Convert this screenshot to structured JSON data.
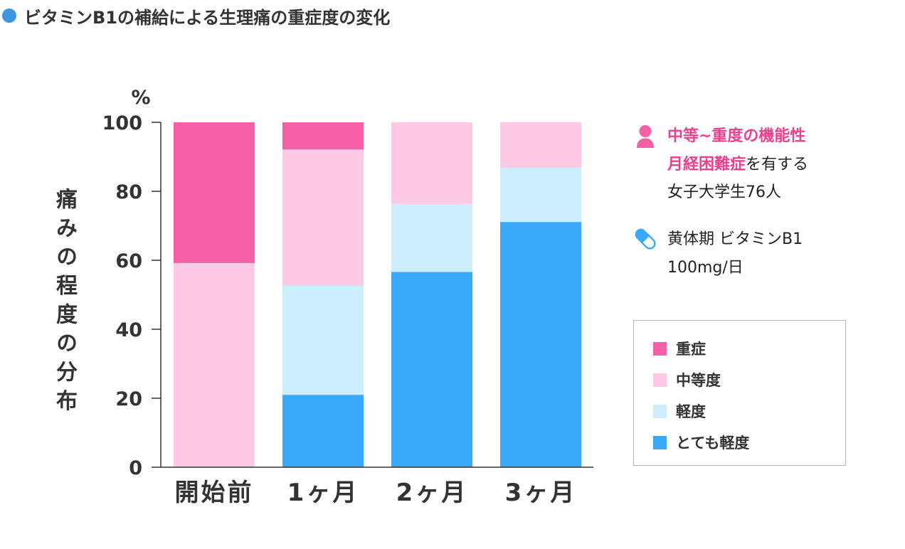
{
  "title": "ビタミンB1の補給による生理痛の重症度の変化",
  "colors": {
    "title_bullet": "#3a97e0",
    "highlight_text": "#e8418f",
    "person_icon": "#f561a5",
    "capsule_icon": "#3ba9f9",
    "axis": "#333333"
  },
  "icons": {
    "title_bullet": "circle-bullet-icon",
    "subjects": "person-icon",
    "supplement": "capsule-icon"
  },
  "chart_data": {
    "type": "bar",
    "stacked": true,
    "categories": [
      "開始前",
      "1ヶ月",
      "2ヶ月",
      "3ヶ月"
    ],
    "series": [
      {
        "name": "とても軽度",
        "values": [
          0,
          21.0,
          56.6,
          71.1
        ],
        "color": "#3ba9f9"
      },
      {
        "name": "軽度",
        "values": [
          0,
          31.6,
          19.7,
          15.8
        ],
        "color": "#cdeefc"
      },
      {
        "name": "中等度",
        "values": [
          59.2,
          39.5,
          23.7,
          13.1
        ],
        "color": "#fdc9e4"
      },
      {
        "name": "重症",
        "values": [
          40.8,
          7.9,
          0,
          0
        ],
        "color": "#f75fa8"
      }
    ],
    "ylabel": "痛みの程度の分布",
    "yunit": "%",
    "yticks": [
      0,
      20,
      40,
      60,
      80,
      100
    ],
    "ylim": [
      0,
      100
    ],
    "grid": false,
    "legend": "right"
  },
  "info": {
    "subjects_line1": "中等~重度の機能性",
    "subjects_line2_highlight": "月経困難症",
    "subjects_line2_rest": "を有する",
    "subjects_line3": "女子大学生76人",
    "dose_line1": "黄体期 ビタミンB1",
    "dose_line2": "100mg/日"
  }
}
